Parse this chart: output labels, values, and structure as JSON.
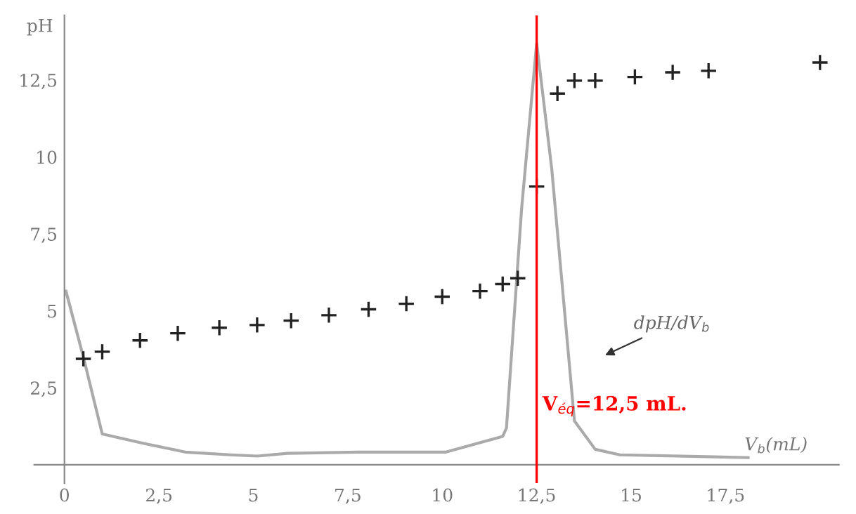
{
  "chart_data": {
    "type": "scatter",
    "xlabel": "V$_{b}$(mL)",
    "ylabel": "pH",
    "xlim": [
      -0.8,
      20.5
    ],
    "ylim": [
      -0.6,
      14.6
    ],
    "xticks": [
      0,
      {
        "value": 2.5,
        "label": "2,5"
      },
      5,
      {
        "value": 7.5,
        "label": "7,5"
      },
      10,
      {
        "value": 12.5,
        "label": "12,5"
      },
      15,
      {
        "value": 17.5,
        "label": "17,5"
      }
    ],
    "yticks": [
      {
        "value": 2.5,
        "label": "2,5"
      },
      5,
      {
        "value": 7.5,
        "label": "7,5"
      },
      10,
      {
        "value": 12.5,
        "label": "12,5"
      }
    ],
    "grid": false,
    "legend": false,
    "series": [
      {
        "marker": "cross",
        "color": "#222222",
        "x": [
          0.5,
          1.0,
          2.0,
          3.0,
          4.1,
          5.1,
          6.0,
          7.0,
          8.05,
          9.05,
          10.0,
          11.0,
          11.6,
          12.0,
          12.5,
          13.05,
          13.5,
          14.05,
          15.1,
          16.1,
          17.05,
          20.0
        ],
        "values": [
          3.44,
          3.67,
          4.04,
          4.27,
          4.45,
          4.54,
          4.68,
          4.86,
          5.05,
          5.23,
          5.46,
          5.64,
          5.87,
          6.06,
          9.04,
          12.06,
          12.48,
          12.48,
          12.6,
          12.75,
          12.8,
          13.07
        ]
      },
      {
        "type": "line",
        "marker": "none",
        "line_style": "solid",
        "color": "#aaaaaa",
        "x": [
          0.04,
          0.5,
          1.0,
          2.1,
          3.2,
          4.4,
          5.1,
          5.9,
          7.8,
          10.1,
          11.6,
          11.7,
          12.1,
          12.5,
          12.9,
          13.5,
          14.05,
          14.7,
          18.1
        ],
        "values": [
          5.64,
          3.5,
          1.0,
          0.69,
          0.41,
          0.32,
          0.28,
          0.37,
          0.41,
          0.41,
          0.92,
          1.19,
          8.3,
          13.7,
          9.6,
          1.42,
          0.5,
          0.32,
          0.23
        ]
      }
    ],
    "ref_lines": [
      {
        "axis": "x",
        "value": 12.5,
        "label": "V$_{éq}$=12,5 mL.",
        "color": "#ff0000",
        "line_style": "solid"
      }
    ],
    "annotations": [
      "dpH/dV$_{b}$"
    ]
  }
}
